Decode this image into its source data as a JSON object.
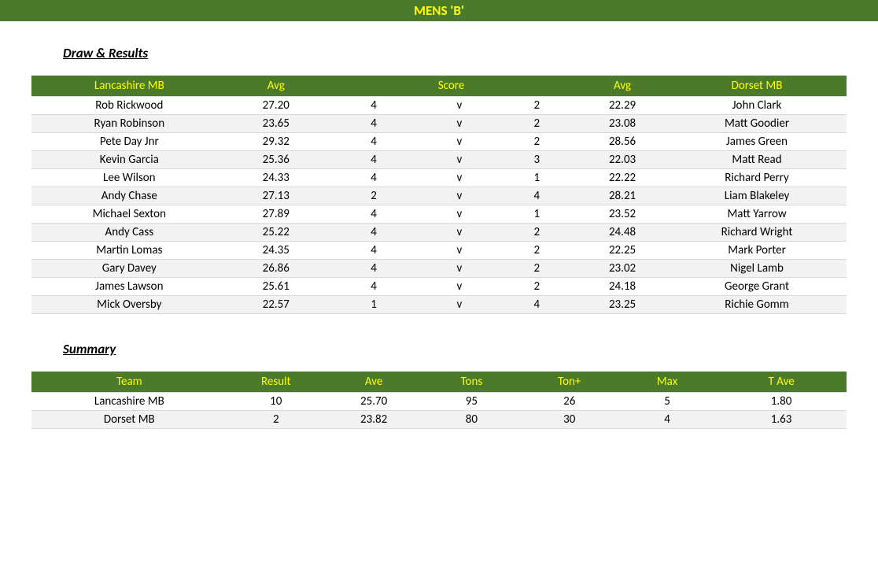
{
  "title": "MENS 'B'",
  "sections": {
    "results_heading": "Draw & Results",
    "summary_heading": "Summary"
  },
  "results": {
    "headers": {
      "team_left": "Lancashire MB",
      "avg_left": "Avg",
      "score": "Score",
      "avg_right": "Avg",
      "team_right": "Dorset MB"
    },
    "rows": [
      {
        "pl": "Rob Rickwood",
        "al": "27.20",
        "sl": "4",
        "v": "v",
        "sr": "2",
        "ar": "22.29",
        "pr": "John Clark"
      },
      {
        "pl": "Ryan Robinson",
        "al": "23.65",
        "sl": "4",
        "v": "v",
        "sr": "2",
        "ar": "23.08",
        "pr": "Matt Goodier"
      },
      {
        "pl": "Pete Day Jnr",
        "al": "29.32",
        "sl": "4",
        "v": "v",
        "sr": "2",
        "ar": "28.56",
        "pr": "James Green"
      },
      {
        "pl": "Kevin Garcia",
        "al": "25.36",
        "sl": "4",
        "v": "v",
        "sr": "3",
        "ar": "22.03",
        "pr": "Matt Read"
      },
      {
        "pl": "Lee Wilson",
        "al": "24.33",
        "sl": "4",
        "v": "v",
        "sr": "1",
        "ar": "22.22",
        "pr": "Richard Perry"
      },
      {
        "pl": "Andy Chase",
        "al": "27.13",
        "sl": "2",
        "v": "v",
        "sr": "4",
        "ar": "28.21",
        "pr": "Liam Blakeley"
      },
      {
        "pl": "Michael Sexton",
        "al": "27.89",
        "sl": "4",
        "v": "v",
        "sr": "1",
        "ar": "23.52",
        "pr": "Matt Yarrow"
      },
      {
        "pl": "Andy Cass",
        "al": "25.22",
        "sl": "4",
        "v": "v",
        "sr": "2",
        "ar": "24.48",
        "pr": "Richard Wright"
      },
      {
        "pl": "Martin Lomas",
        "al": "24.35",
        "sl": "4",
        "v": "v",
        "sr": "2",
        "ar": "22.25",
        "pr": "Mark Porter"
      },
      {
        "pl": "Gary Davey",
        "al": "26.86",
        "sl": "4",
        "v": "v",
        "sr": "2",
        "ar": "23.02",
        "pr": "Nigel Lamb"
      },
      {
        "pl": "James Lawson",
        "al": "25.61",
        "sl": "4",
        "v": "v",
        "sr": "2",
        "ar": "24.18",
        "pr": "George Grant"
      },
      {
        "pl": "Mick Oversby",
        "al": "22.57",
        "sl": "1",
        "v": "v",
        "sr": "4",
        "ar": "23.25",
        "pr": "Richie Gomm"
      }
    ]
  },
  "summary": {
    "headers": {
      "team": "Team",
      "result": "Result",
      "ave": "Ave",
      "tons": "Tons",
      "tonp": "Ton+",
      "max": "Max",
      "tave": "T Ave"
    },
    "rows": [
      {
        "team": "Lancashire MB",
        "result": "10",
        "ave": "25.70",
        "tons": "95",
        "tonp": "26",
        "max": "5",
        "tave": "1.80"
      },
      {
        "team": "Dorset MB",
        "result": "2",
        "ave": "23.82",
        "tons": "80",
        "tonp": "30",
        "max": "4",
        "tave": "1.63"
      }
    ]
  }
}
